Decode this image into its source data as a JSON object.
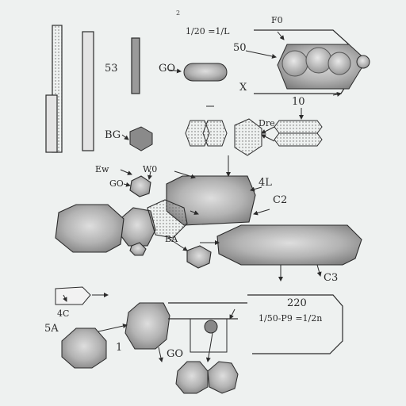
{
  "labels": {
    "top_small": "2",
    "top_formula": "1/20 =1/L",
    "top_f0": "F0",
    "n53": "53",
    "n50": "50",
    "go_top": "GO",
    "x": "X",
    "n10": "10",
    "dre": "Dre",
    "bg": "BG",
    "ew": "Ew",
    "w0": "W0",
    "go_mid": "GO",
    "l4": "4L",
    "c2": "C2",
    "ba": "BA",
    "c3": "C3",
    "c4": "4C",
    "n5a": "5A",
    "n1": "1",
    "n220": "220",
    "formula_bottom": "1/50-P9 =1/2n",
    "go_bottom": "GO"
  },
  "colors": {
    "line": "#2b2b2b",
    "fill_dark": "#8e8e8e",
    "fill_light": "#cfcfcf",
    "background": "#eef1f0"
  }
}
